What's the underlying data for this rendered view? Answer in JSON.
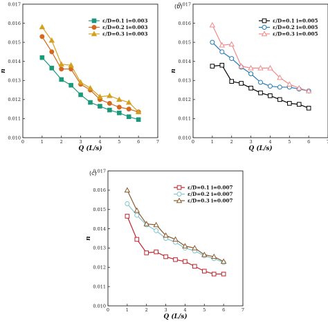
{
  "chart_data": [
    {
      "panel_label": "",
      "type": "line",
      "xlabel": "Q (L/s)",
      "ylabel": "n",
      "xlim": [
        0,
        7
      ],
      "ylim": [
        0.01,
        0.017
      ],
      "xticks": [
        "0",
        "1",
        "2",
        "3",
        "4",
        "5",
        "6",
        "7"
      ],
      "yticks": [
        "0.010",
        "0.011",
        "0.012",
        "0.013",
        "0.014",
        "0.015",
        "0.016",
        "0.017"
      ],
      "legend_position": "top-right",
      "series": [
        {
          "name": "ε/D=0.1  i=0.003",
          "color": "#1a9a7a",
          "marker": "square",
          "x": [
            1.0,
            1.5,
            2.0,
            2.5,
            3.0,
            3.5,
            4.0,
            4.5,
            5.0,
            5.5,
            6.0
          ],
          "y": [
            0.0142,
            0.01365,
            0.01305,
            0.01275,
            0.01225,
            0.01185,
            0.01165,
            0.01145,
            0.0113,
            0.0111,
            0.01095
          ]
        },
        {
          "name": "ε/D=0.2  i=0.003",
          "color": "#d2691e",
          "marker": "circle",
          "x": [
            1.0,
            1.5,
            2.0,
            2.5,
            3.0,
            3.5,
            4.0,
            4.5,
            5.0,
            5.5,
            6.0
          ],
          "y": [
            0.0153,
            0.0145,
            0.0136,
            0.0136,
            0.0128,
            0.0125,
            0.012,
            0.0118,
            0.0116,
            0.0115,
            0.01135
          ]
        },
        {
          "name": "ε/D=0.3  i=0.003",
          "color": "#d4a020",
          "marker": "triangle",
          "x": [
            1.0,
            1.5,
            2.0,
            2.5,
            3.0,
            3.5,
            4.0,
            4.5,
            5.0,
            5.5,
            6.0
          ],
          "y": [
            0.0158,
            0.0151,
            0.01385,
            0.0138,
            0.0129,
            0.0126,
            0.01215,
            0.0122,
            0.012,
            0.01185,
            0.01135
          ]
        }
      ]
    },
    {
      "panel_label": "(b)",
      "type": "line",
      "xlabel": "Q (L/s)",
      "ylabel": "n",
      "xlim": [
        0,
        7
      ],
      "ylim": [
        0.01,
        0.017
      ],
      "xticks": [
        "0",
        "1",
        "2",
        "3",
        "4",
        "5",
        "6",
        "7"
      ],
      "yticks": [
        "0.010",
        "0.011",
        "0.012",
        "0.013",
        "0.014",
        "0.015",
        "0.016",
        "0.017"
      ],
      "legend_position": "top-right",
      "series": [
        {
          "name": "ε/D=0.1  i=0.005",
          "color": "#000000",
          "marker": "square-open",
          "x": [
            1.0,
            1.5,
            2.0,
            2.5,
            3.0,
            3.5,
            4.0,
            4.5,
            5.0,
            5.5,
            6.0
          ],
          "y": [
            0.01375,
            0.0138,
            0.01295,
            0.01285,
            0.0126,
            0.01235,
            0.0122,
            0.012,
            0.0118,
            0.01175,
            0.01155
          ]
        },
        {
          "name": "ε/D=0.2  i=0.005",
          "color": "#1f7ab5",
          "marker": "circle-open",
          "x": [
            1.0,
            1.5,
            2.0,
            2.5,
            3.0,
            3.5,
            4.0,
            4.5,
            5.0,
            5.5,
            6.0
          ],
          "y": [
            0.015,
            0.0145,
            0.01415,
            0.0137,
            0.01335,
            0.0129,
            0.0127,
            0.01265,
            0.01265,
            0.01255,
            0.01245
          ]
        },
        {
          "name": "ε/D=0.3  i=0.005",
          "color": "#f08a8a",
          "marker": "triangle-open",
          "x": [
            1.0,
            1.5,
            2.0,
            2.5,
            3.0,
            3.5,
            4.0,
            4.5,
            5.0,
            5.5,
            6.0
          ],
          "y": [
            0.0159,
            0.01485,
            0.0149,
            0.01375,
            0.01365,
            0.01365,
            0.01365,
            0.01315,
            0.0128,
            0.0126,
            0.01245
          ]
        }
      ]
    },
    {
      "panel_label": "(c)",
      "type": "line",
      "xlabel": "Q (L/s)",
      "ylabel": "n",
      "xlim": [
        0,
        7
      ],
      "ylim": [
        0.01,
        0.017
      ],
      "xticks": [
        "0",
        "1",
        "2",
        "3",
        "4",
        "5",
        "6",
        "7"
      ],
      "yticks": [
        "0.010",
        "0.011",
        "0.012",
        "0.013",
        "0.014",
        "0.015",
        "0.016",
        "0.017"
      ],
      "legend_position": "top-right",
      "series": [
        {
          "name": "ε/D=0.1  i=0.007",
          "color": "#c0222a",
          "marker": "square-open",
          "x": [
            1.0,
            1.5,
            2.0,
            2.5,
            3.0,
            3.5,
            4.0,
            4.5,
            5.0,
            5.5,
            6.0
          ],
          "y": [
            0.01465,
            0.01345,
            0.01275,
            0.0128,
            0.01255,
            0.0124,
            0.0123,
            0.01205,
            0.0118,
            0.01165,
            0.01165
          ]
        },
        {
          "name": "ε/D=0.2  i=0.007",
          "color": "#7fc6cc",
          "marker": "circle-open",
          "x": [
            1.0,
            1.5,
            2.0,
            2.5,
            3.0,
            3.5,
            4.0,
            4.5,
            5.0,
            5.5,
            6.0
          ],
          "y": [
            0.0153,
            0.0147,
            0.0142,
            0.0139,
            0.0135,
            0.0133,
            0.013,
            0.01285,
            0.0126,
            0.01245,
            0.01225
          ]
        },
        {
          "name": "ε/D=0.3  i=0.007",
          "color": "#8b5a2b",
          "marker": "triangle-open",
          "x": [
            1.0,
            1.5,
            2.0,
            2.5,
            3.0,
            3.5,
            4.0,
            4.5,
            5.0,
            5.5,
            6.0
          ],
          "y": [
            0.016,
            0.01495,
            0.01425,
            0.0142,
            0.01365,
            0.01345,
            0.0131,
            0.013,
            0.01265,
            0.01255,
            0.0123
          ]
        }
      ]
    }
  ]
}
